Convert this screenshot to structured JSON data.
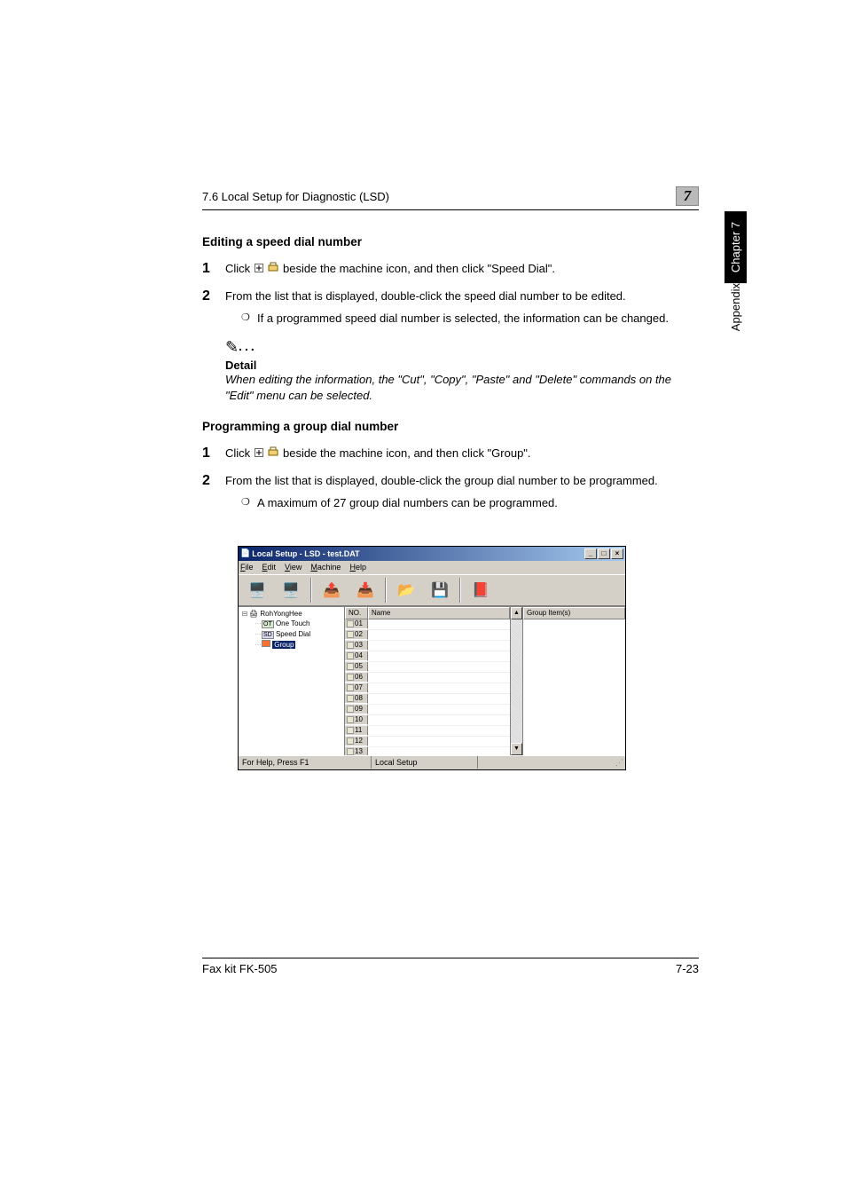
{
  "header": {
    "section": "7.6 Local Setup for Diagnostic (LSD)",
    "chapter_num": "7"
  },
  "sidetab": {
    "chapter": "Chapter 7",
    "appendix": "Appendix"
  },
  "section1": {
    "title": "Editing a speed dial number",
    "step1_pre": "Click ",
    "step1_post": " beside the machine icon, and then click \"Speed Dial\".",
    "step2": "From the list that is displayed, double-click the speed dial number to be edited.",
    "bullet": "If a programmed speed dial number is selected, the information can be changed."
  },
  "detail": {
    "label": "Detail",
    "text": "When editing the information, the \"Cut\", \"Copy\", \"Paste\" and \"Delete\" commands on the \"Edit\" menu can be selected."
  },
  "section2": {
    "title": "Programming a group dial number",
    "step1_pre": "Click ",
    "step1_post": " beside the machine icon, and then click \"Group\".",
    "step2": "From the list that is displayed, double-click the group dial number to be programmed.",
    "bullet": "A maximum of 27 group dial numbers can be programmed."
  },
  "window": {
    "title": "Local Setup - LSD - test.DAT",
    "menus": [
      "File",
      "Edit",
      "View",
      "Machine",
      "Help"
    ],
    "tree": {
      "root": "RohYongHee",
      "items": [
        {
          "badge": "OT",
          "badge_bg": "#d8e8d0",
          "label": "One Touch",
          "selected": false
        },
        {
          "badge": "SD",
          "badge_bg": "#d8d8f0",
          "label": "Speed Dial",
          "selected": false
        },
        {
          "badge": "",
          "badge_bg": "#ff7030",
          "label": "Group",
          "selected": true
        }
      ]
    },
    "grid": {
      "col_no": "NO.",
      "col_name": "Name",
      "col_group": "Group Item(s)",
      "rows": [
        "01",
        "02",
        "03",
        "04",
        "05",
        "06",
        "07",
        "08",
        "09",
        "10",
        "11",
        "12",
        "13"
      ]
    },
    "status_left": "For Help, Press F1",
    "status_mid": "Local Setup",
    "toolbar_icons": [
      "🖥️",
      "🖥️",
      "📤",
      "📥",
      "📂",
      "💾",
      "📕"
    ],
    "colors": {
      "titlebar_left": "#0a246a",
      "titlebar_right": "#a6caf0",
      "chrome": "#d4d0c8"
    }
  },
  "footer": {
    "left": "Fax kit FK-505",
    "right": "7-23"
  }
}
